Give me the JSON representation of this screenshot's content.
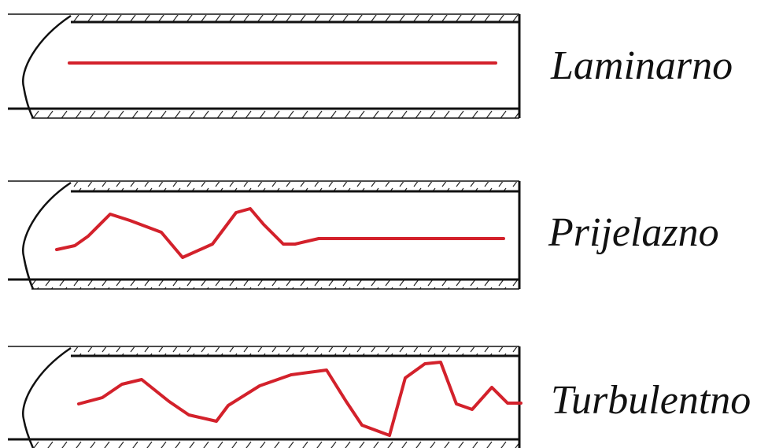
{
  "labels": [
    "Laminarno",
    "Prijelazno",
    "Turbulentno"
  ]
}
